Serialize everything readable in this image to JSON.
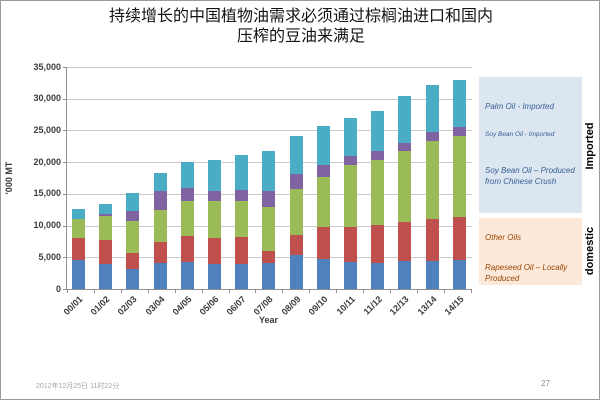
{
  "title": {
    "line1": "持续增长的中国植物油需求必须通过棕榈油进口和国内",
    "line2": "压榨的豆油来满足"
  },
  "chart_data": {
    "type": "bar",
    "stacked": true,
    "stack_order": "bottom-to-top",
    "xlabel": "Year",
    "ylabel": "'000 MT",
    "ylim": [
      0,
      35000
    ],
    "ytick_step": 5000,
    "ytick_labels": [
      "0",
      "5,000",
      "10,000",
      "15,000",
      "20,000",
      "25,000",
      "30,000",
      "35,000"
    ],
    "grid": true,
    "categories": [
      "00/01",
      "01/02",
      "02/03",
      "03/04",
      "04/05",
      "05/06",
      "06/07",
      "07/08",
      "08/09",
      "09/10",
      "10/11",
      "11/12",
      "12/13",
      "13/14",
      "14/15"
    ],
    "series": [
      {
        "name": "Rapeseed Oil – Locally Produced",
        "color": "#4F81BD",
        "values": [
          4600,
          3900,
          3100,
          4100,
          4300,
          3900,
          3900,
          4100,
          5300,
          4800,
          4300,
          4100,
          4400,
          4400,
          4600
        ]
      },
      {
        "name": "Other Oils",
        "color": "#C0504D",
        "values": [
          3400,
          3900,
          2600,
          3300,
          4100,
          4100,
          4300,
          1900,
          3200,
          4900,
          5500,
          6000,
          6200,
          6600,
          6700
        ]
      },
      {
        "name": "Soy Bean Oil – Produced from Chinese Crush",
        "color": "#9BBB59",
        "values": [
          3000,
          3700,
          5000,
          5000,
          5500,
          5800,
          5600,
          7000,
          7200,
          8000,
          9800,
          10300,
          11200,
          12400,
          12900
        ]
      },
      {
        "name": "Soy Bean Oil - Imported",
        "color": "#8064A2",
        "values": [
          100,
          400,
          1600,
          3000,
          2100,
          1600,
          1800,
          2400,
          2400,
          1900,
          1400,
          1400,
          1300,
          1300,
          1300
        ]
      },
      {
        "name": "Palm Oil - Imported",
        "color": "#4BACC6",
        "values": [
          1500,
          1500,
          2900,
          2900,
          4100,
          4900,
          5600,
          6300,
          6100,
          6100,
          6000,
          6300,
          7300,
          7400,
          7400
        ]
      }
    ]
  },
  "legend": {
    "imported": {
      "bg": "#DCE6F1",
      "text_color": "#376092",
      "side_label": "Imported",
      "items": [
        {
          "label": "Palm Oil - Imported"
        },
        {
          "label": "Soy Bean Oil - Imported"
        },
        {
          "label": "Soy Bean Oil – Produced from Chinese Crush"
        }
      ]
    },
    "domestic": {
      "bg": "#FDE9D9",
      "text_color": "#974706",
      "side_label": "domestic",
      "items": [
        {
          "label": "Other Oils"
        },
        {
          "label": "Rapeseed Oil – Locally Produced"
        }
      ]
    }
  },
  "footer": {
    "datetime": "2012年12月25日 11时22分",
    "page_number": "27"
  }
}
